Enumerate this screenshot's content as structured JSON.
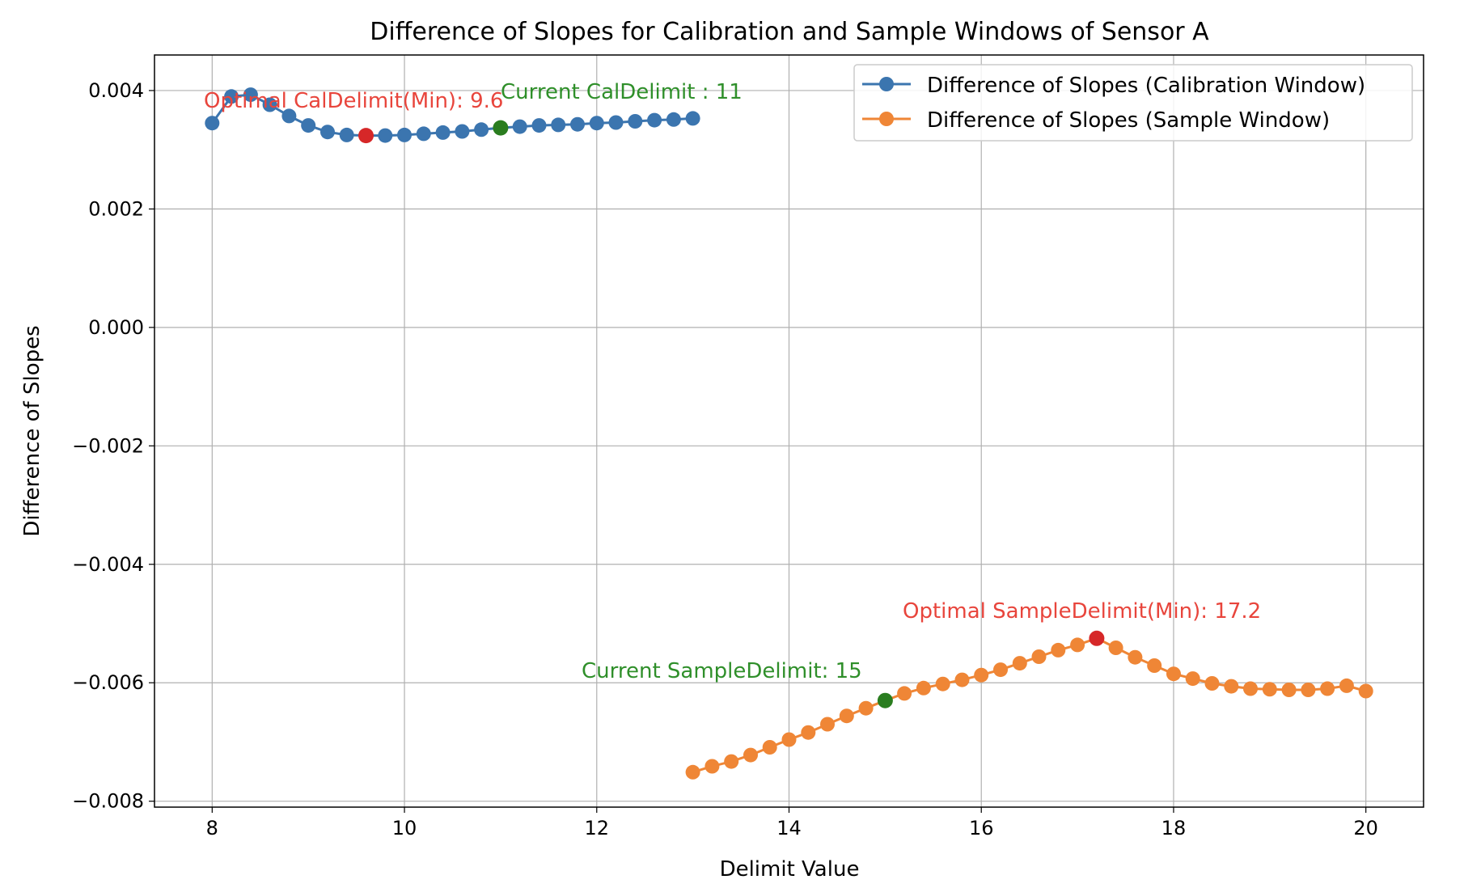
{
  "chart_data": {
    "type": "line",
    "title": "Difference of Slopes for Calibration and Sample Windows of Sensor A",
    "xlabel": "Delimit Value",
    "ylabel": "Difference of Slopes",
    "xlim": [
      7.4,
      20.6
    ],
    "ylim": [
      -0.0081,
      0.0046
    ],
    "grid": true,
    "legend_position": "top-right",
    "x_ticks": [
      8,
      10,
      12,
      14,
      16,
      18,
      20
    ],
    "x_tick_labels": [
      "8",
      "10",
      "12",
      "14",
      "16",
      "18",
      "20"
    ],
    "y_ticks": [
      -0.008,
      -0.006,
      -0.004,
      -0.002,
      0.0,
      0.002,
      0.004
    ],
    "y_tick_labels": [
      "−0.008",
      "−0.006",
      "−0.004",
      "−0.002",
      "0.000",
      "0.002",
      "0.004"
    ],
    "series": [
      {
        "name": "Difference of Slopes (Calibration Window)",
        "color": "#3b75af",
        "x": [
          8.0,
          8.2,
          8.4,
          8.6,
          8.8,
          9.0,
          9.2,
          9.4,
          9.6,
          9.8,
          10.0,
          10.2,
          10.4,
          10.6,
          10.8,
          11.0,
          11.2,
          11.4,
          11.6,
          11.8,
          12.0,
          12.2,
          12.4,
          12.6,
          12.8,
          13.0
        ],
        "y": [
          0.00345,
          0.0039,
          0.00393,
          0.00376,
          0.00357,
          0.00341,
          0.0033,
          0.00325,
          0.00324,
          0.00324,
          0.00325,
          0.00327,
          0.00329,
          0.00331,
          0.00334,
          0.00337,
          0.00339,
          0.00341,
          0.00342,
          0.00343,
          0.00345,
          0.00346,
          0.00348,
          0.0035,
          0.00351,
          0.00353
        ]
      },
      {
        "name": "Difference of Slopes (Sample Window)",
        "color": "#ef8636",
        "x": [
          13.0,
          13.2,
          13.4,
          13.6,
          13.8,
          14.0,
          14.2,
          14.4,
          14.6,
          14.8,
          15.0,
          15.2,
          15.4,
          15.6,
          15.8,
          16.0,
          16.2,
          16.4,
          16.6,
          16.8,
          17.0,
          17.2,
          17.4,
          17.6,
          17.8,
          18.0,
          18.2,
          18.4,
          18.6,
          18.8,
          19.0,
          19.2,
          19.4,
          19.6,
          19.8,
          20.0
        ],
        "y": [
          -0.00751,
          -0.00741,
          -0.00733,
          -0.00722,
          -0.00709,
          -0.00696,
          -0.00684,
          -0.0067,
          -0.00656,
          -0.00643,
          -0.0063,
          -0.00618,
          -0.00609,
          -0.00602,
          -0.00595,
          -0.00587,
          -0.00578,
          -0.00567,
          -0.00556,
          -0.00545,
          -0.00536,
          -0.00525,
          -0.00541,
          -0.00557,
          -0.00571,
          -0.00585,
          -0.00593,
          -0.00601,
          -0.00606,
          -0.0061,
          -0.00611,
          -0.00612,
          -0.00612,
          -0.0061,
          -0.00605,
          -0.00614
        ]
      }
    ],
    "highlight_points": [
      {
        "label": "optimal-cal",
        "x": 9.6,
        "y": 0.00324,
        "color": "#d62728"
      },
      {
        "label": "current-cal",
        "x": 11.0,
        "y": 0.00337,
        "color": "#2a7d1f"
      },
      {
        "label": "optimal-sample",
        "x": 17.2,
        "y": -0.00525,
        "color": "#d62728"
      },
      {
        "label": "current-sample",
        "x": 15.0,
        "y": -0.0063,
        "color": "#2a7d1f"
      }
    ],
    "annotations": [
      {
        "text": "Optimal CalDelimit(Min): 9.6",
        "color": "#e8453c"
      },
      {
        "text": "Current CalDelimit : 11",
        "color": "#2f8f2a"
      },
      {
        "text": "Optimal SampleDelimit(Min): 17.2",
        "color": "#e8453c"
      },
      {
        "text": "Current SampleDelimit: 15",
        "color": "#2f8f2a"
      }
    ]
  }
}
